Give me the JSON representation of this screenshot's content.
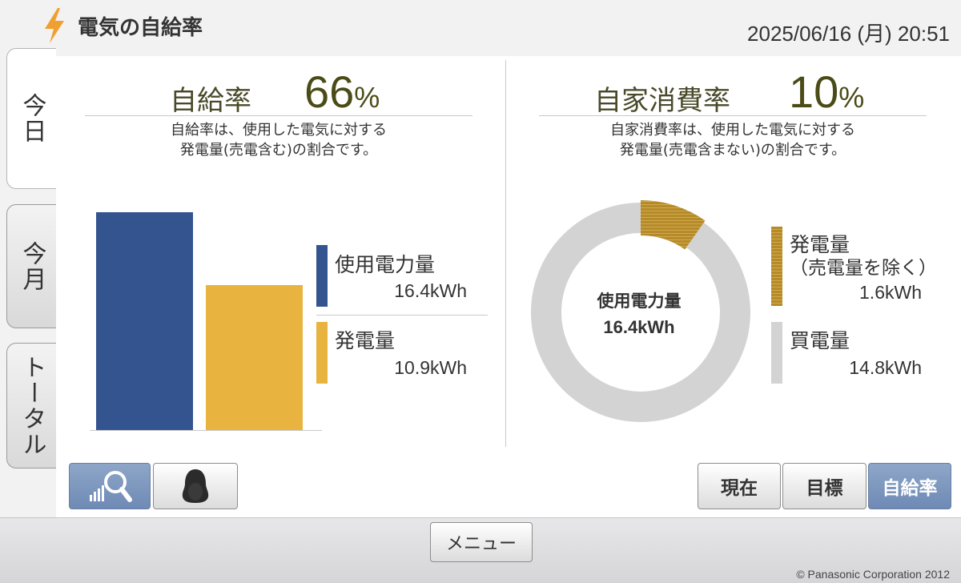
{
  "header": {
    "title": "電気の自給率",
    "datetime": "2025/06/16 (月) 20:51",
    "icon": "lightning-bolt-icon"
  },
  "tabs": [
    {
      "label": "今日",
      "active": true
    },
    {
      "label": "今月",
      "active": false
    },
    {
      "label": "トータル",
      "active": false
    }
  ],
  "self_sufficiency": {
    "label": "自給率",
    "value": "66",
    "unit": "%",
    "desc_line1": "自給率は、使用した電気に対する",
    "desc_line2": "発電量(売電含む)の割合です。"
  },
  "self_consumption": {
    "label": "自家消費率",
    "value": "10",
    "unit": "%",
    "desc_line1": "自家消費率は、使用した電気に対する",
    "desc_line2": "発電量(売電含まない)の割合です。"
  },
  "bar_legend": {
    "usage_label": "使用電力量",
    "usage_value": "16.4kWh",
    "generation_label": "発電量",
    "generation_value": "10.9kWh"
  },
  "donut": {
    "center_label": "使用電力量",
    "center_value": "16.4kWh",
    "gen_label_line1": "発電量",
    "gen_label_line2": "（売電量を除く）",
    "gen_value": "1.6kWh",
    "buy_label": "買電量",
    "buy_value": "14.8kWh"
  },
  "colors": {
    "usage": "#34548f",
    "generation": "#e8b43f",
    "self_consumed": "#b58a2a",
    "purchased": "#d3d3d3",
    "accent_selected": "#7893bc"
  },
  "chart_data": [
    {
      "type": "bar",
      "categories": [
        "使用電力量",
        "発電量"
      ],
      "values": [
        16.4,
        10.9
      ],
      "unit": "kWh"
    },
    {
      "type": "pie",
      "labels": [
        "発電量（売電量を除く）",
        "買電量"
      ],
      "values": [
        1.6,
        14.8
      ],
      "unit": "kWh",
      "center_text": "使用電力量 16.4kWh"
    }
  ],
  "view_buttons": {
    "graph_icon": "graph-zoom-icon",
    "character_icon": "penguin-character-icon"
  },
  "mode_buttons": [
    {
      "label": "現在",
      "selected": false
    },
    {
      "label": "目標",
      "selected": false
    },
    {
      "label": "自給率",
      "selected": true
    }
  ],
  "footer": {
    "menu_label": "メニュー",
    "copyright": "© Panasonic Corporation 2012"
  }
}
